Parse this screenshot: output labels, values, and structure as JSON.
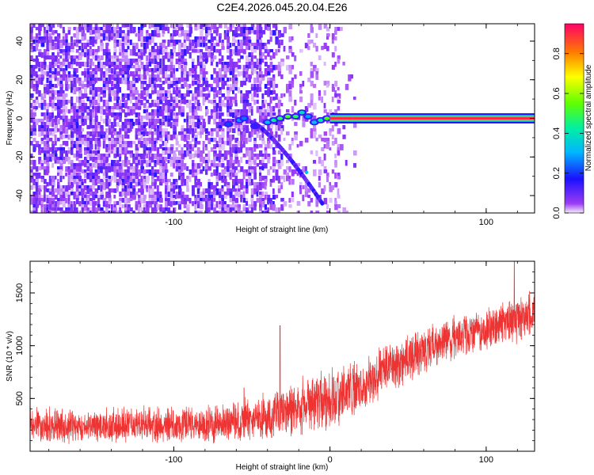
{
  "chart_data": [
    {
      "type": "heatmap",
      "title": "C2E4.2026.045.20.04.E26",
      "xlabel": "Height of straight line (km)",
      "ylabel": "Frequency (Hz)",
      "xlim": [
        -192,
        131
      ],
      "ylim": [
        -49,
        49
      ],
      "xticks": [
        -100,
        0,
        100
      ],
      "xtick_labels": [
        "-100",
        "",
        "100"
      ],
      "yticks": [
        -40,
        -20,
        0,
        20,
        40
      ],
      "ytick_labels": [
        "-40",
        "-20",
        "0",
        "20",
        "40"
      ],
      "colorbar": {
        "label": "Normalized spectral amplitude",
        "range": [
          0,
          0.95
        ],
        "ticks": [
          0.0,
          0.2,
          0.4,
          0.6,
          0.8
        ],
        "tick_labels": [
          "0.0",
          "0.2",
          "0.4",
          "0.6",
          "0.8"
        ]
      },
      "features": [
        {
          "name": "carrier",
          "x_range": [
            0,
            131
          ],
          "frequency": 0,
          "amplitude": 0.95
        },
        {
          "name": "head-echo",
          "x_range": [
            -70,
            0
          ],
          "frequency": 0,
          "amplitude": 0.5
        },
        {
          "name": "doppler-branch",
          "x_range": [
            -50,
            -5
          ],
          "frequency_range": [
            -2,
            -44
          ],
          "amplitude": 0.15
        }
      ]
    },
    {
      "type": "line",
      "xlabel": "Height of straight line (km)",
      "ylabel": "SNR (10 * v/v)",
      "xlim": [
        -192,
        131
      ],
      "ylim": [
        0,
        1800
      ],
      "xticks": [
        -100,
        0,
        100
      ],
      "xtick_labels": [
        "-100",
        "0",
        "100"
      ],
      "yticks": [
        500,
        1000,
        1500
      ],
      "ytick_labels": [
        "500",
        "1000",
        "1500"
      ],
      "series": [
        {
          "name": "SNR",
          "color": "#ee3333",
          "x": [
            -192,
            -160,
            -120,
            -80,
            -60,
            -40,
            -20,
            0,
            20,
            40,
            60,
            80,
            100,
            120,
            131
          ],
          "mean": [
            250,
            240,
            250,
            260,
            280,
            320,
            420,
            500,
            620,
            800,
            950,
            1080,
            1150,
            1250,
            1300
          ],
          "spread": [
            150,
            140,
            150,
            150,
            160,
            200,
            220,
            260,
            230,
            200,
            190,
            180,
            180,
            190,
            200
          ],
          "spikes": [
            {
              "x": -55,
              "y": 600
            },
            {
              "x": -32,
              "y": 1190
            },
            {
              "x": 118,
              "y": 1800
            }
          ]
        }
      ]
    }
  ]
}
